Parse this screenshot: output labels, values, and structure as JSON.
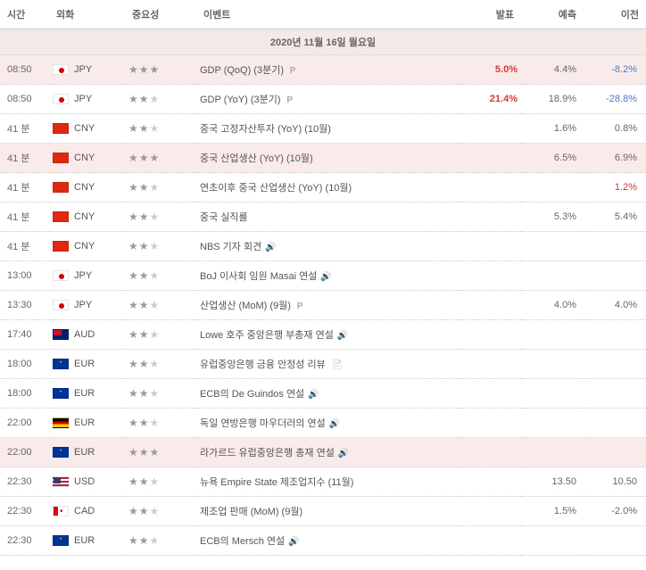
{
  "headers": {
    "time": "시간",
    "currency": "외화",
    "importance": "중요성",
    "event": "이벤트",
    "actual": "발표",
    "forecast": "예측",
    "previous": "이전"
  },
  "date_header": "2020년  11월  16일  월요일",
  "rows": [
    {
      "time": "08:50",
      "flag": "jp",
      "code": "JPY",
      "stars": 3,
      "event": "GDP (QoQ) (3분기)",
      "icon": "p",
      "actual": "5.0%",
      "actual_class": "val-red",
      "forecast": "4.4%",
      "previous": "-8.2%",
      "prev_class": "val-blue",
      "highlight": true
    },
    {
      "time": "08:50",
      "flag": "jp",
      "code": "JPY",
      "stars": 2,
      "event": "GDP (YoY) (3분기)",
      "icon": "p",
      "actual": "21.4%",
      "actual_class": "val-red",
      "forecast": "18.9%",
      "previous": "-28.8%",
      "prev_class": "val-blue",
      "highlight": false
    },
    {
      "time": "41 분",
      "flag": "cn",
      "code": "CNY",
      "stars": 2,
      "event": "중국 고정자산투자 (YoY) (10월)",
      "icon": "",
      "actual": "",
      "actual_class": "",
      "forecast": "1.6%",
      "previous": "0.8%",
      "prev_class": "val-normal",
      "highlight": false
    },
    {
      "time": "41 분",
      "flag": "cn",
      "code": "CNY",
      "stars": 3,
      "event": "중국 산업생산 (YoY) (10월)",
      "icon": "",
      "actual": "",
      "actual_class": "",
      "forecast": "6.5%",
      "previous": "6.9%",
      "prev_class": "val-normal",
      "highlight": true
    },
    {
      "time": "41 분",
      "flag": "cn",
      "code": "CNY",
      "stars": 2,
      "event": "연초이후 중국 산업생산 (YoY) (10월)",
      "icon": "",
      "actual": "",
      "actual_class": "",
      "forecast": "",
      "previous": "1.2%",
      "prev_class": "val-red",
      "highlight": false
    },
    {
      "time": "41 분",
      "flag": "cn",
      "code": "CNY",
      "stars": 2,
      "event": "중국 실직률",
      "icon": "",
      "actual": "",
      "actual_class": "",
      "forecast": "5.3%",
      "previous": "5.4%",
      "prev_class": "val-normal",
      "highlight": false
    },
    {
      "time": "41 분",
      "flag": "cn",
      "code": "CNY",
      "stars": 2,
      "event": "NBS 기자 회견",
      "icon": "speaker",
      "actual": "",
      "actual_class": "",
      "forecast": "",
      "previous": "",
      "prev_class": "",
      "highlight": false
    },
    {
      "time": "13:00",
      "flag": "jp",
      "code": "JPY",
      "stars": 2,
      "event": "BoJ 이사회 임원 Masai 연설",
      "icon": "speaker",
      "actual": "",
      "actual_class": "",
      "forecast": "",
      "previous": "",
      "prev_class": "",
      "highlight": false
    },
    {
      "time": "13:30",
      "flag": "jp",
      "code": "JPY",
      "stars": 2,
      "event": "산업생산 (MoM) (9월)",
      "icon": "p",
      "actual": "",
      "actual_class": "",
      "forecast": "4.0%",
      "previous": "4.0%",
      "prev_class": "val-normal",
      "highlight": false
    },
    {
      "time": "17:40",
      "flag": "au",
      "code": "AUD",
      "stars": 2,
      "event": "Lowe 호주 중앙은행 부총재 연설",
      "icon": "speaker",
      "actual": "",
      "actual_class": "",
      "forecast": "",
      "previous": "",
      "prev_class": "",
      "highlight": false
    },
    {
      "time": "18:00",
      "flag": "eu",
      "code": "EUR",
      "stars": 2,
      "event": "유럽중앙은행 금융 안정성 리뷰",
      "icon": "doc",
      "actual": "",
      "actual_class": "",
      "forecast": "",
      "previous": "",
      "prev_class": "",
      "highlight": false
    },
    {
      "time": "18:00",
      "flag": "eu",
      "code": "EUR",
      "stars": 2,
      "event": "ECB의 De Guindos 연설",
      "icon": "speaker",
      "actual": "",
      "actual_class": "",
      "forecast": "",
      "previous": "",
      "prev_class": "",
      "highlight": false
    },
    {
      "time": "22:00",
      "flag": "de",
      "code": "EUR",
      "stars": 2,
      "event": "독일 연방은행 마우더러의 연설",
      "icon": "speaker",
      "actual": "",
      "actual_class": "",
      "forecast": "",
      "previous": "",
      "prev_class": "",
      "highlight": false
    },
    {
      "time": "22:00",
      "flag": "eu",
      "code": "EUR",
      "stars": 3,
      "event": "라가르드 유럽중앙은행 총재 연설",
      "icon": "speaker",
      "actual": "",
      "actual_class": "",
      "forecast": "",
      "previous": "",
      "prev_class": "",
      "highlight": true
    },
    {
      "time": "22:30",
      "flag": "us",
      "code": "USD",
      "stars": 2,
      "event": "뉴욕 Empire State 제조업지수 (11월)",
      "icon": "",
      "actual": "",
      "actual_class": "",
      "forecast": "13.50",
      "previous": "10.50",
      "prev_class": "val-normal",
      "highlight": false
    },
    {
      "time": "22:30",
      "flag": "ca",
      "code": "CAD",
      "stars": 2,
      "event": "제조업 판매 (MoM) (9월)",
      "icon": "",
      "actual": "",
      "actual_class": "",
      "forecast": "1.5%",
      "previous": "-2.0%",
      "prev_class": "val-normal",
      "highlight": false
    },
    {
      "time": "22:30",
      "flag": "eu",
      "code": "EUR",
      "stars": 2,
      "event": "ECB의 Mersch 연설",
      "icon": "speaker",
      "actual": "",
      "actual_class": "",
      "forecast": "",
      "previous": "",
      "prev_class": "",
      "highlight": false
    }
  ]
}
